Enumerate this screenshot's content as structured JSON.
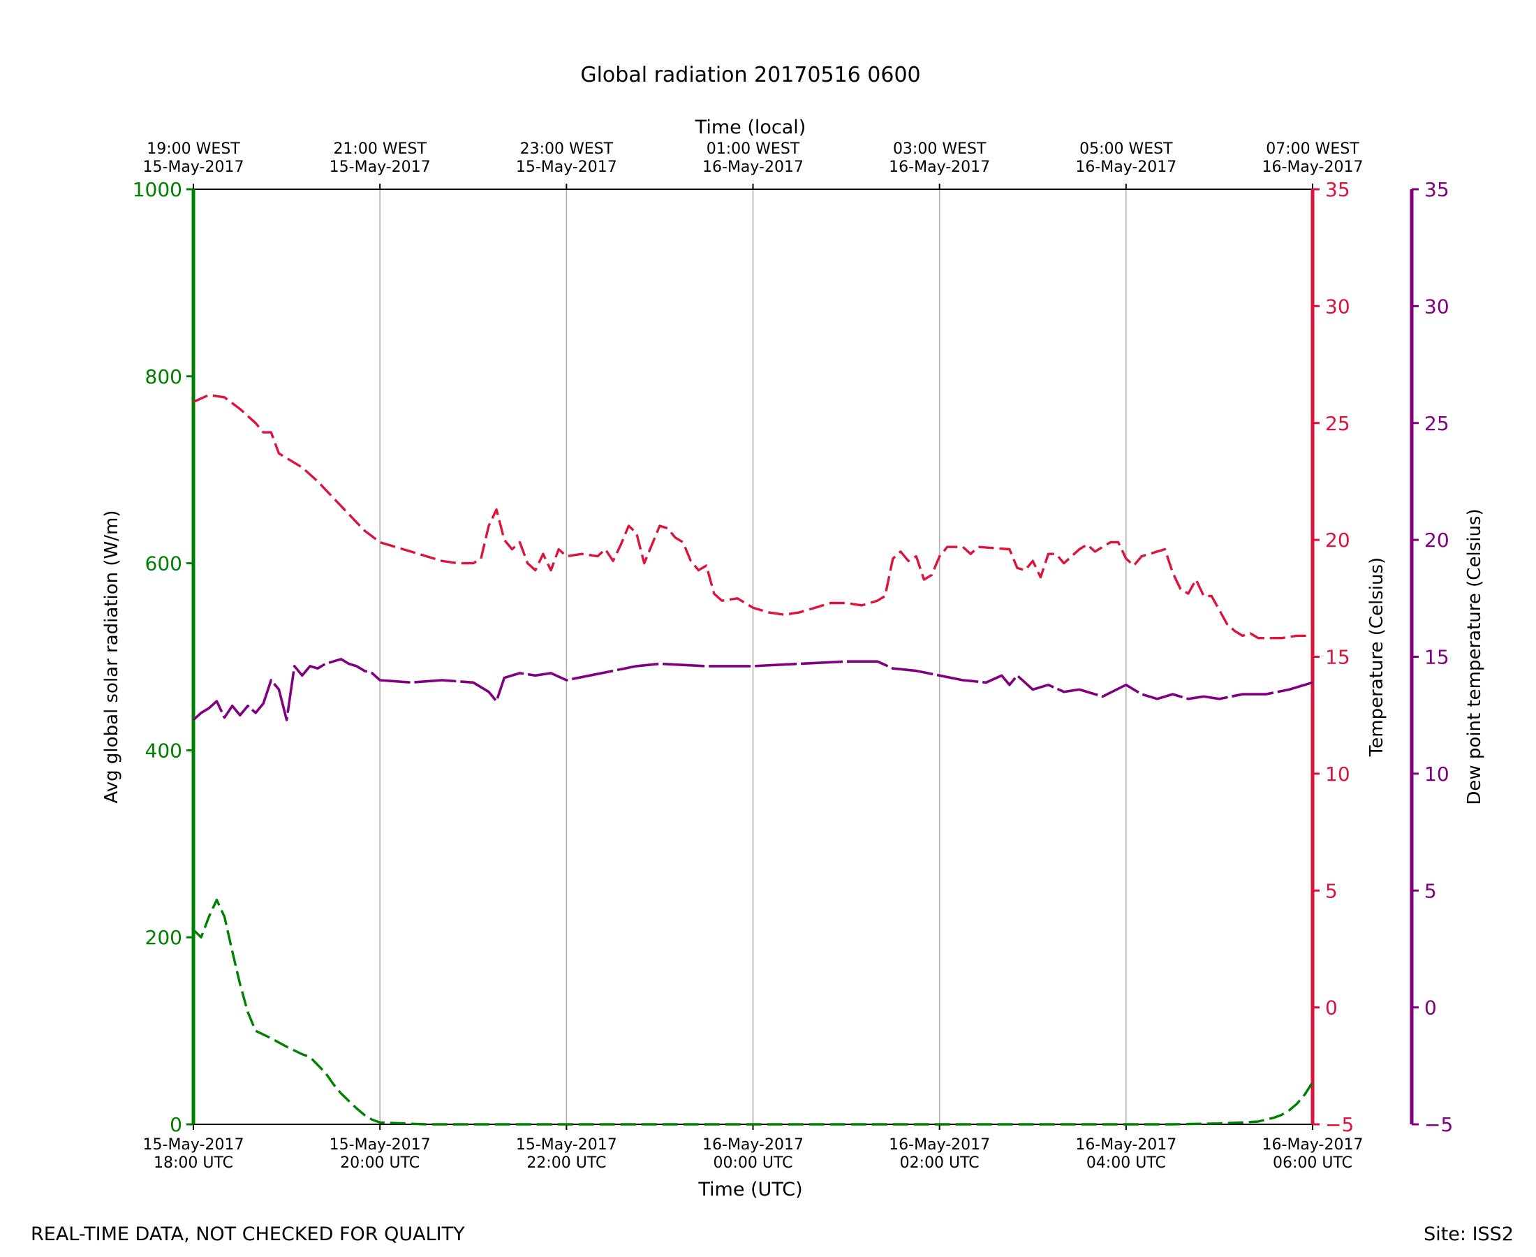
{
  "title": "Global radiation 20170516 0600",
  "footer_left": "REAL-TIME DATA, NOT CHECKED FOR QUALITY",
  "footer_right": "Site: ISS2",
  "colors": {
    "radiation": "#008000",
    "temperature": "#dc143c",
    "dewpoint": "#800080",
    "grid": "#b0b0b0",
    "axis": "#000000"
  },
  "chart_data": {
    "type": "line",
    "title": "Global radiation 20170516 0600",
    "xlabel": "Time (UTC)",
    "xlabel_top": "Time (local)",
    "xlim": [
      "2017-05-15 18:00 UTC",
      "2017-05-16 06:00 UTC"
    ],
    "grid": "vertical lines at major ticks",
    "x_ticks_bottom": [
      {
        "t": "2017-05-15 18:00",
        "line1": "15-May-2017",
        "line2": "18:00 UTC"
      },
      {
        "t": "2017-05-15 20:00",
        "line1": "15-May-2017",
        "line2": "20:00 UTC"
      },
      {
        "t": "2017-05-15 22:00",
        "line1": "15-May-2017",
        "line2": "22:00 UTC"
      },
      {
        "t": "2017-05-16 00:00",
        "line1": "16-May-2017",
        "line2": "00:00 UTC"
      },
      {
        "t": "2017-05-16 02:00",
        "line1": "16-May-2017",
        "line2": "02:00 UTC"
      },
      {
        "t": "2017-05-16 04:00",
        "line1": "16-May-2017",
        "line2": "04:00 UTC"
      },
      {
        "t": "2017-05-16 06:00",
        "line1": "16-May-2017",
        "line2": "06:00 UTC"
      }
    ],
    "x_ticks_top": [
      {
        "t": "2017-05-15 18:00",
        "line1": "19:00 WEST",
        "line2": "15-May-2017"
      },
      {
        "t": "2017-05-15 20:00",
        "line1": "21:00 WEST",
        "line2": "15-May-2017"
      },
      {
        "t": "2017-05-15 22:00",
        "line1": "23:00 WEST",
        "line2": "15-May-2017"
      },
      {
        "t": "2017-05-16 00:00",
        "line1": "01:00 WEST",
        "line2": "16-May-2017"
      },
      {
        "t": "2017-05-16 02:00",
        "line1": "03:00 WEST",
        "line2": "16-May-2017"
      },
      {
        "t": "2017-05-16 04:00",
        "line1": "05:00 WEST",
        "line2": "16-May-2017"
      },
      {
        "t": "2017-05-16 06:00",
        "line1": "07:00 WEST",
        "line2": "16-May-2017"
      }
    ],
    "axes": {
      "left": {
        "label": "Avg global solar radiation (W/m)",
        "ylim": [
          0,
          1000
        ],
        "ticks": [
          0,
          200,
          400,
          600,
          800,
          1000
        ]
      },
      "right1": {
        "label": "Temperature (Celsius)",
        "ylim": [
          -5,
          35
        ],
        "ticks": [
          -5,
          0,
          5,
          10,
          15,
          20,
          25,
          30,
          35
        ]
      },
      "right2": {
        "label": "Dew point temperature (Celsius)",
        "ylim": [
          -5,
          35
        ],
        "ticks": [
          -5,
          0,
          5,
          10,
          15,
          20,
          25,
          30,
          35
        ]
      }
    },
    "series": [
      {
        "key": "radiation",
        "axis": "left",
        "style": "dashed",
        "points": [
          [
            "2017-05-15 18:00",
            208
          ],
          [
            "2017-05-15 18:05",
            200
          ],
          [
            "2017-05-15 18:10",
            222
          ],
          [
            "2017-05-15 18:15",
            240
          ],
          [
            "2017-05-15 18:20",
            222
          ],
          [
            "2017-05-15 18:25",
            185
          ],
          [
            "2017-05-15 18:30",
            150
          ],
          [
            "2017-05-15 18:35",
            120
          ],
          [
            "2017-05-15 18:40",
            100
          ],
          [
            "2017-05-15 18:50",
            92
          ],
          [
            "2017-05-15 19:00",
            83
          ],
          [
            "2017-05-15 19:10",
            75
          ],
          [
            "2017-05-15 19:15",
            72
          ],
          [
            "2017-05-15 19:25",
            55
          ],
          [
            "2017-05-15 19:30",
            43
          ],
          [
            "2017-05-15 19:35",
            33
          ],
          [
            "2017-05-15 19:40",
            25
          ],
          [
            "2017-05-15 19:45",
            17
          ],
          [
            "2017-05-15 19:50",
            10
          ],
          [
            "2017-05-15 19:55",
            5
          ],
          [
            "2017-05-15 20:00",
            2
          ],
          [
            "2017-05-15 20:15",
            1
          ],
          [
            "2017-05-15 20:30",
            0
          ],
          [
            "2017-05-16 04:30",
            0
          ],
          [
            "2017-05-16 05:00",
            1
          ],
          [
            "2017-05-16 05:15",
            2
          ],
          [
            "2017-05-16 05:25",
            3
          ],
          [
            "2017-05-16 05:30",
            5
          ],
          [
            "2017-05-16 05:35",
            7
          ],
          [
            "2017-05-16 05:40",
            10
          ],
          [
            "2017-05-16 05:45",
            15
          ],
          [
            "2017-05-16 05:50",
            22
          ],
          [
            "2017-05-16 05:55",
            32
          ],
          [
            "2017-05-16 06:00",
            45
          ]
        ]
      },
      {
        "key": "temperature",
        "axis": "right1",
        "style": "dashed",
        "points": [
          [
            "2017-05-15 18:00",
            25.9
          ],
          [
            "2017-05-15 18:10",
            26.2
          ],
          [
            "2017-05-15 18:20",
            26.1
          ],
          [
            "2017-05-15 18:30",
            25.6
          ],
          [
            "2017-05-15 18:40",
            25.0
          ],
          [
            "2017-05-15 18:45",
            24.6
          ],
          [
            "2017-05-15 18:50",
            24.6
          ],
          [
            "2017-05-15 18:55",
            23.7
          ],
          [
            "2017-05-15 19:10",
            23.1
          ],
          [
            "2017-05-15 19:20",
            22.5
          ],
          [
            "2017-05-15 19:30",
            21.8
          ],
          [
            "2017-05-15 19:40",
            21.1
          ],
          [
            "2017-05-15 19:50",
            20.4
          ],
          [
            "2017-05-15 20:00",
            19.9
          ],
          [
            "2017-05-15 20:10",
            19.7
          ],
          [
            "2017-05-15 20:20",
            19.5
          ],
          [
            "2017-05-15 20:30",
            19.3
          ],
          [
            "2017-05-15 20:40",
            19.1
          ],
          [
            "2017-05-15 20:50",
            19.0
          ],
          [
            "2017-05-15 21:00",
            19.0
          ],
          [
            "2017-05-15 21:05",
            19.2
          ],
          [
            "2017-05-15 21:10",
            20.6
          ],
          [
            "2017-05-15 21:15",
            21.3
          ],
          [
            "2017-05-15 21:20",
            20.0
          ],
          [
            "2017-05-15 21:25",
            19.6
          ],
          [
            "2017-05-15 21:30",
            19.9
          ],
          [
            "2017-05-15 21:35",
            19.0
          ],
          [
            "2017-05-15 21:40",
            18.7
          ],
          [
            "2017-05-15 21:45",
            19.4
          ],
          [
            "2017-05-15 21:50",
            18.7
          ],
          [
            "2017-05-15 21:55",
            19.6
          ],
          [
            "2017-05-15 22:00",
            19.3
          ],
          [
            "2017-05-15 22:10",
            19.4
          ],
          [
            "2017-05-15 22:20",
            19.3
          ],
          [
            "2017-05-15 22:25",
            19.6
          ],
          [
            "2017-05-15 22:30",
            19.1
          ],
          [
            "2017-05-15 22:35",
            19.8
          ],
          [
            "2017-05-15 22:40",
            20.6
          ],
          [
            "2017-05-15 22:45",
            20.3
          ],
          [
            "2017-05-15 22:50",
            19.0
          ],
          [
            "2017-05-15 22:55",
            19.8
          ],
          [
            "2017-05-15 23:00",
            20.6
          ],
          [
            "2017-05-15 23:05",
            20.5
          ],
          [
            "2017-05-15 23:10",
            20.1
          ],
          [
            "2017-05-15 23:15",
            19.9
          ],
          [
            "2017-05-15 23:20",
            19.1
          ],
          [
            "2017-05-15 23:25",
            18.7
          ],
          [
            "2017-05-15 23:30",
            18.9
          ],
          [
            "2017-05-15 23:35",
            17.7
          ],
          [
            "2017-05-15 23:40",
            17.4
          ],
          [
            "2017-05-15 23:50",
            17.5
          ],
          [
            "2017-05-16 00:00",
            17.1
          ],
          [
            "2017-05-16 00:10",
            16.9
          ],
          [
            "2017-05-16 00:20",
            16.8
          ],
          [
            "2017-05-16 00:30",
            16.9
          ],
          [
            "2017-05-16 00:40",
            17.1
          ],
          [
            "2017-05-16 00:50",
            17.3
          ],
          [
            "2017-05-16 01:00",
            17.3
          ],
          [
            "2017-05-16 01:10",
            17.2
          ],
          [
            "2017-05-16 01:20",
            17.4
          ],
          [
            "2017-05-16 01:25",
            17.6
          ],
          [
            "2017-05-16 01:30",
            19.2
          ],
          [
            "2017-05-16 01:35",
            19.5
          ],
          [
            "2017-05-16 01:40",
            19.1
          ],
          [
            "2017-05-16 01:45",
            19.3
          ],
          [
            "2017-05-16 01:50",
            18.3
          ],
          [
            "2017-05-16 01:55",
            18.5
          ],
          [
            "2017-05-16 02:00",
            19.3
          ],
          [
            "2017-05-16 02:05",
            19.7
          ],
          [
            "2017-05-16 02:15",
            19.7
          ],
          [
            "2017-05-16 02:20",
            19.4
          ],
          [
            "2017-05-16 02:25",
            19.7
          ],
          [
            "2017-05-16 02:45",
            19.6
          ],
          [
            "2017-05-16 02:50",
            18.8
          ],
          [
            "2017-05-16 02:55",
            18.7
          ],
          [
            "2017-05-16 03:00",
            19.1
          ],
          [
            "2017-05-16 03:05",
            18.4
          ],
          [
            "2017-05-16 03:10",
            19.4
          ],
          [
            "2017-05-16 03:15",
            19.4
          ],
          [
            "2017-05-16 03:20",
            19.0
          ],
          [
            "2017-05-16 03:30",
            19.6
          ],
          [
            "2017-05-16 03:35",
            19.8
          ],
          [
            "2017-05-16 03:40",
            19.5
          ],
          [
            "2017-05-16 03:45",
            19.7
          ],
          [
            "2017-05-16 03:50",
            19.9
          ],
          [
            "2017-05-16 03:55",
            19.9
          ],
          [
            "2017-05-16 04:00",
            19.2
          ],
          [
            "2017-05-16 04:05",
            18.9
          ],
          [
            "2017-05-16 04:10",
            19.3
          ],
          [
            "2017-05-16 04:20",
            19.5
          ],
          [
            "2017-05-16 04:25",
            19.6
          ],
          [
            "2017-05-16 04:30",
            18.6
          ],
          [
            "2017-05-16 04:35",
            17.9
          ],
          [
            "2017-05-16 04:40",
            17.7
          ],
          [
            "2017-05-16 04:45",
            18.3
          ],
          [
            "2017-05-16 04:50",
            17.6
          ],
          [
            "2017-05-16 04:55",
            17.6
          ],
          [
            "2017-05-16 05:00",
            17.0
          ],
          [
            "2017-05-16 05:05",
            16.4
          ],
          [
            "2017-05-16 05:10",
            16.1
          ],
          [
            "2017-05-16 05:15",
            15.9
          ],
          [
            "2017-05-16 05:20",
            16.0
          ],
          [
            "2017-05-16 05:25",
            15.8
          ],
          [
            "2017-05-16 05:30",
            15.8
          ],
          [
            "2017-05-16 05:40",
            15.8
          ],
          [
            "2017-05-16 05:50",
            15.9
          ],
          [
            "2017-05-16 06:00",
            15.9
          ]
        ]
      },
      {
        "key": "dewpoint",
        "axis": "right2",
        "style": "solid with gaps",
        "points": [
          [
            "2017-05-15 18:00",
            12.3
          ],
          [
            "2017-05-15 18:05",
            12.6
          ],
          [
            "2017-05-15 18:10",
            12.8
          ],
          [
            "2017-05-15 18:15",
            13.1
          ],
          [
            "2017-05-15 18:20",
            12.4
          ],
          [
            "2017-05-15 18:25",
            12.9
          ],
          [
            "2017-05-15 18:30",
            12.5
          ],
          [
            "2017-05-15 18:35",
            12.9
          ],
          [
            "2017-05-15 18:40",
            12.6
          ],
          [
            "2017-05-15 18:45",
            13.0
          ],
          [
            "2017-05-15 18:50",
            14.0
          ],
          [
            "2017-05-15 18:55",
            13.6
          ],
          [
            "2017-05-15 19:00",
            12.3
          ],
          [
            "2017-05-15 19:05",
            14.6
          ],
          [
            "2017-05-15 19:10",
            14.2
          ],
          [
            "2017-05-15 19:15",
            14.6
          ],
          [
            "2017-05-15 19:20",
            14.5
          ],
          [
            "2017-05-15 19:25",
            14.7
          ],
          [
            "2017-05-15 19:30",
            14.8
          ],
          [
            "2017-05-15 19:35",
            14.9
          ],
          [
            "2017-05-15 19:40",
            14.7
          ],
          [
            "2017-05-15 19:45",
            14.6
          ],
          [
            "2017-05-15 19:50",
            14.4
          ],
          [
            "2017-05-15 19:55",
            14.3
          ],
          [
            "2017-05-15 20:00",
            14.0
          ],
          [
            "2017-05-15 20:20",
            13.9
          ],
          [
            "2017-05-15 20:40",
            14.0
          ],
          [
            "2017-05-15 21:00",
            13.9
          ],
          [
            "2017-05-15 21:10",
            13.5
          ],
          [
            "2017-05-15 21:15",
            13.1
          ],
          [
            "2017-05-15 21:20",
            14.1
          ],
          [
            "2017-05-15 21:30",
            14.3
          ],
          [
            "2017-05-15 21:40",
            14.2
          ],
          [
            "2017-05-15 21:50",
            14.3
          ],
          [
            "2017-05-15 22:00",
            14.0
          ],
          [
            "2017-05-15 22:15",
            14.2
          ],
          [
            "2017-05-15 22:30",
            14.4
          ],
          [
            "2017-05-15 22:45",
            14.6
          ],
          [
            "2017-05-15 23:00",
            14.7
          ],
          [
            "2017-05-15 23:30",
            14.6
          ],
          [
            "2017-05-16 00:00",
            14.6
          ],
          [
            "2017-05-16 00:30",
            14.7
          ],
          [
            "2017-05-16 01:00",
            14.8
          ],
          [
            "2017-05-16 01:20",
            14.8
          ],
          [
            "2017-05-16 01:30",
            14.5
          ],
          [
            "2017-05-16 01:45",
            14.4
          ],
          [
            "2017-05-16 02:00",
            14.2
          ],
          [
            "2017-05-16 02:15",
            14.0
          ],
          [
            "2017-05-16 02:30",
            13.9
          ],
          [
            "2017-05-16 02:40",
            14.2
          ],
          [
            "2017-05-16 02:45",
            13.8
          ],
          [
            "2017-05-16 02:50",
            14.2
          ],
          [
            "2017-05-16 03:00",
            13.6
          ],
          [
            "2017-05-16 03:10",
            13.8
          ],
          [
            "2017-05-16 03:20",
            13.5
          ],
          [
            "2017-05-16 03:30",
            13.6
          ],
          [
            "2017-05-16 03:45",
            13.3
          ],
          [
            "2017-05-16 04:00",
            13.8
          ],
          [
            "2017-05-16 04:10",
            13.4
          ],
          [
            "2017-05-16 04:20",
            13.2
          ],
          [
            "2017-05-16 04:30",
            13.4
          ],
          [
            "2017-05-16 04:40",
            13.2
          ],
          [
            "2017-05-16 04:50",
            13.3
          ],
          [
            "2017-05-16 05:00",
            13.2
          ],
          [
            "2017-05-16 05:15",
            13.4
          ],
          [
            "2017-05-16 05:30",
            13.4
          ],
          [
            "2017-05-16 05:45",
            13.6
          ],
          [
            "2017-05-16 06:00",
            13.9
          ]
        ]
      }
    ]
  }
}
